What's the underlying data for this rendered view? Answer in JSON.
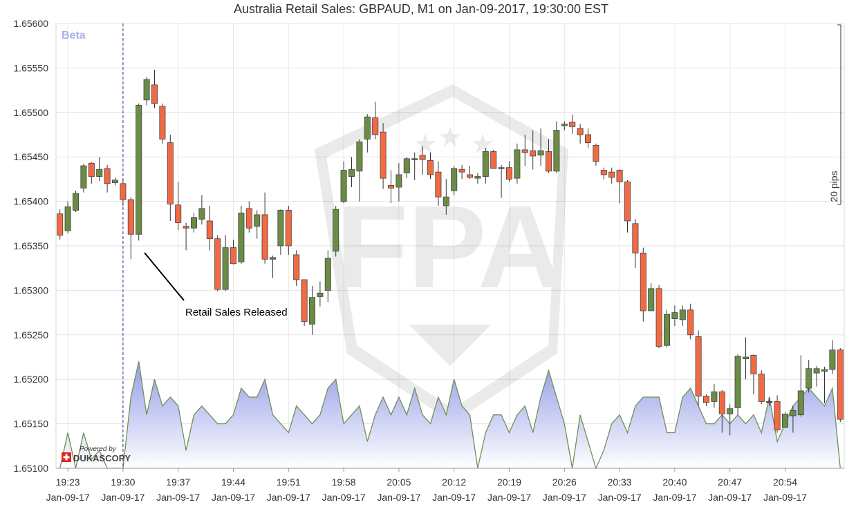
{
  "chart_data": {
    "type": "candlestick",
    "title": "Australia Retail Sales: GBPAUD, M1 on Jan-09-2017, 19:30:00 EST",
    "beta_label": "Beta",
    "powered_by": "Powered by",
    "brand": "DUKASCOPY",
    "watermark": "FPA",
    "pips_label": "20 pips",
    "annotation": "Retail Sales Released",
    "ylim": [
      1.651,
      1.656
    ],
    "y_ticks": [
      "1.65600",
      "1.65550",
      "1.65500",
      "1.65450",
      "1.65400",
      "1.65350",
      "1.65300",
      "1.65250",
      "1.65200",
      "1.65150",
      "1.65100"
    ],
    "x_ticks": [
      {
        "time": "19:23",
        "date": "Jan-09-17"
      },
      {
        "time": "19:30",
        "date": "Jan-09-17"
      },
      {
        "time": "19:37",
        "date": "Jan-09-17"
      },
      {
        "time": "19:44",
        "date": "Jan-09-17"
      },
      {
        "time": "19:51",
        "date": "Jan-09-17"
      },
      {
        "time": "19:58",
        "date": "Jan-09-17"
      },
      {
        "time": "20:05",
        "date": "Jan-09-17"
      },
      {
        "time": "20:12",
        "date": "Jan-09-17"
      },
      {
        "time": "20:19",
        "date": "Jan-09-17"
      },
      {
        "time": "20:26",
        "date": "Jan-09-17"
      },
      {
        "time": "20:33",
        "date": "Jan-09-17"
      },
      {
        "time": "20:40",
        "date": "Jan-09-17"
      },
      {
        "time": "20:47",
        "date": "Jan-09-17"
      },
      {
        "time": "20:54",
        "date": "Jan-09-17"
      }
    ],
    "first_minute": "19:22",
    "event_minute": "19:30",
    "colors": {
      "up": "#6b8c45",
      "down": "#f26a43",
      "doji": "#7a2f8a",
      "volume_line": "#6f8f52",
      "volume_fill_top": "#8f98e6",
      "event_line": "#2b2b8f",
      "beta": "#aab2ee"
    },
    "candles": [
      [
        1.65386,
        1.65391,
        1.65357,
        1.65362
      ],
      [
        1.65367,
        1.654,
        1.65364,
        1.65394
      ],
      [
        1.6539,
        1.65412,
        1.65388,
        1.65409
      ],
      [
        1.65415,
        1.65442,
        1.6541,
        1.6544
      ],
      [
        1.65443,
        1.65444,
        1.6542,
        1.65428
      ],
      [
        1.65428,
        1.6545,
        1.65423,
        1.65436
      ],
      [
        1.65437,
        1.65441,
        1.6541,
        1.6542
      ],
      [
        1.65421,
        1.65427,
        1.65418,
        1.65424
      ],
      [
        1.6542,
        1.65425,
        1.65395,
        1.65402
      ],
      [
        1.65402,
        1.65405,
        1.65335,
        1.65363
      ],
      [
        1.65363,
        1.6551,
        1.65356,
        1.65508
      ],
      [
        1.65514,
        1.6554,
        1.65508,
        1.65537
      ],
      [
        1.65531,
        1.65548,
        1.65505,
        1.6551
      ],
      [
        1.65507,
        1.6551,
        1.65465,
        1.6547
      ],
      [
        1.65466,
        1.65475,
        1.65378,
        1.65397
      ],
      [
        1.65396,
        1.65422,
        1.65368,
        1.65376
      ],
      [
        1.65372,
        1.65376,
        1.65345,
        1.6537
      ],
      [
        1.6537,
        1.65387,
        1.65365,
        1.65382
      ],
      [
        1.6538,
        1.65407,
        1.65374,
        1.65392
      ],
      [
        1.65378,
        1.65395,
        1.65345,
        1.65358
      ],
      [
        1.65358,
        1.65362,
        1.65299,
        1.65301
      ],
      [
        1.65301,
        1.65362,
        1.65299,
        1.65348
      ],
      [
        1.65348,
        1.65357,
        1.65329,
        1.6533
      ],
      [
        1.65332,
        1.65395,
        1.6533,
        1.65387
      ],
      [
        1.65392,
        1.654,
        1.65365,
        1.6537
      ],
      [
        1.65372,
        1.6539,
        1.65358,
        1.65385
      ],
      [
        1.65385,
        1.6541,
        1.6533,
        1.65335
      ],
      [
        1.65335,
        1.65339,
        1.65314,
        1.65337
      ],
      [
        1.6535,
        1.65391,
        1.6534,
        1.6539
      ],
      [
        1.6539,
        1.65395,
        1.6534,
        1.6535
      ],
      [
        1.6534,
        1.65345,
        1.65305,
        1.65312
      ],
      [
        1.65312,
        1.6531,
        1.6526,
        1.65265
      ],
      [
        1.65262,
        1.65305,
        1.6525,
        1.65292
      ],
      [
        1.65293,
        1.6531,
        1.65282,
        1.65297
      ],
      [
        1.653,
        1.65345,
        1.65287,
        1.65336
      ],
      [
        1.65344,
        1.65395,
        1.65338,
        1.65391
      ],
      [
        1.654,
        1.65445,
        1.65398,
        1.65435
      ],
      [
        1.65428,
        1.6545,
        1.65416,
        1.65436
      ],
      [
        1.65434,
        1.6547,
        1.654,
        1.65467
      ],
      [
        1.6547,
        1.65498,
        1.65455,
        1.65495
      ],
      [
        1.65494,
        1.65512,
        1.6547,
        1.65475
      ],
      [
        1.65478,
        1.65488,
        1.65414,
        1.65426
      ],
      [
        1.65418,
        1.65435,
        1.65398,
        1.65415
      ],
      [
        1.65416,
        1.65443,
        1.654,
        1.6543
      ],
      [
        1.65432,
        1.6545,
        1.65426,
        1.65448
      ],
      [
        1.65448,
        1.65455,
        1.65424,
        1.65448
      ],
      [
        1.65452,
        1.65462,
        1.6543,
        1.65447
      ],
      [
        1.65446,
        1.65455,
        1.65425,
        1.6543
      ],
      [
        1.65433,
        1.65445,
        1.65395,
        1.65405
      ],
      [
        1.65395,
        1.65425,
        1.65385,
        1.65405
      ],
      [
        1.65412,
        1.6544,
        1.65407,
        1.65437
      ],
      [
        1.65436,
        1.65441,
        1.65425,
        1.65433
      ],
      [
        1.6543,
        1.6544,
        1.65425,
        1.65427
      ],
      [
        1.65426,
        1.65432,
        1.6542,
        1.65428
      ],
      [
        1.65428,
        1.6546,
        1.6542,
        1.65456
      ],
      [
        1.65456,
        1.65458,
        1.65437,
        1.65437
      ],
      [
        1.65437,
        1.65441,
        1.65404,
        1.65438
      ],
      [
        1.65438,
        1.65445,
        1.65422,
        1.65425
      ],
      [
        1.65426,
        1.65465,
        1.6542,
        1.65458
      ],
      [
        1.65458,
        1.65475,
        1.6544,
        1.65455
      ],
      [
        1.65457,
        1.6548,
        1.65436,
        1.65451
      ],
      [
        1.65452,
        1.65482,
        1.6544,
        1.65457
      ],
      [
        1.65456,
        1.6547,
        1.65432,
        1.65434
      ],
      [
        1.65434,
        1.6549,
        1.65432,
        1.6548
      ],
      [
        1.65485,
        1.6549,
        1.6548,
        1.65487
      ],
      [
        1.65489,
        1.65497,
        1.65476,
        1.65484
      ],
      [
        1.65482,
        1.65487,
        1.65465,
        1.65475
      ],
      [
        1.65475,
        1.65482,
        1.6546,
        1.65466
      ],
      [
        1.65463,
        1.65465,
        1.6544,
        1.65445
      ],
      [
        1.65435,
        1.65438,
        1.65425,
        1.6543
      ],
      [
        1.65433,
        1.65438,
        1.6542,
        1.65427
      ],
      [
        1.65435,
        1.65436,
        1.65398,
        1.65422
      ],
      [
        1.65422,
        1.65424,
        1.65365,
        1.65378
      ],
      [
        1.65375,
        1.6538,
        1.65325,
        1.65342
      ],
      [
        1.65342,
        1.65348,
        1.65265,
        1.65277
      ],
      [
        1.65277,
        1.65308,
        1.65277,
        1.65302
      ],
      [
        1.65302,
        1.65306,
        1.65235,
        1.65237
      ],
      [
        1.65238,
        1.65278,
        1.65236,
        1.65273
      ],
      [
        1.65268,
        1.65283,
        1.6526,
        1.65275
      ],
      [
        1.65267,
        1.65283,
        1.6526,
        1.65278
      ],
      [
        1.65278,
        1.65285,
        1.65245,
        1.6525
      ],
      [
        1.65248,
        1.65255,
        1.6517,
        1.65181
      ],
      [
        1.65181,
        1.65183,
        1.6517,
        1.65174
      ],
      [
        1.65175,
        1.65195,
        1.65168,
        1.65186
      ],
      [
        1.65186,
        1.65188,
        1.6514,
        1.65161
      ],
      [
        1.65161,
        1.65172,
        1.65137,
        1.65167
      ],
      [
        1.65168,
        1.65228,
        1.6516,
        1.65226
      ],
      [
        1.65223,
        1.65247,
        1.652,
        1.65225
      ],
      [
        1.65227,
        1.65228,
        1.65183,
        1.65206
      ],
      [
        1.65206,
        1.6521,
        1.65172,
        1.65175
      ],
      [
        1.65175,
        1.6518,
        1.6517,
        1.65174
      ],
      [
        1.65175,
        1.65182,
        1.6514,
        1.65143
      ],
      [
        1.65146,
        1.65163,
        1.65145,
        1.65161
      ],
      [
        1.65159,
        1.6517,
        1.6514,
        1.65165
      ],
      [
        1.6516,
        1.65227,
        1.65158,
        1.65187
      ],
      [
        1.6519,
        1.65222,
        1.65185,
        1.65212
      ],
      [
        1.65207,
        1.65215,
        1.65192,
        1.65212
      ],
      [
        1.65209,
        1.65214,
        1.65173,
        1.65211
      ],
      [
        1.65211,
        1.65244,
        1.65206,
        1.65233
      ],
      [
        1.65233,
        1.65235,
        1.65152,
        1.65155
      ]
    ],
    "volume": [
      1.651,
      1.6514,
      1.651,
      1.6514,
      1.6511,
      1.6512,
      1.651,
      1.651,
      1.651,
      1.6518,
      1.6522,
      1.6516,
      1.652,
      1.6517,
      1.6518,
      1.6517,
      1.6512,
      1.6516,
      1.6517,
      1.6516,
      1.6515,
      1.6515,
      1.6516,
      1.6519,
      1.6518,
      1.6518,
      1.652,
      1.6516,
      1.6515,
      1.6514,
      1.6517,
      1.6516,
      1.6515,
      1.6516,
      1.6519,
      1.652,
      1.6515,
      1.6516,
      1.6517,
      1.6513,
      1.6516,
      1.6518,
      1.6516,
      1.6518,
      1.6516,
      1.6519,
      1.6516,
      1.6515,
      1.6518,
      1.6516,
      1.652,
      1.6517,
      1.6516,
      1.651,
      1.6514,
      1.6516,
      1.6516,
      1.6514,
      1.6516,
      1.6517,
      1.6514,
      1.6518,
      1.6521,
      1.6518,
      1.6515,
      1.651,
      1.6516,
      1.6513,
      1.651,
      1.6512,
      1.6515,
      1.6516,
      1.6514,
      1.6517,
      1.6518,
      1.6518,
      1.6518,
      1.6514,
      1.6514,
      1.6518,
      1.6519,
      1.6517,
      1.6515,
      1.6515,
      1.6516,
      1.6515,
      1.6516,
      1.6515,
      1.6516,
      1.6514,
      1.6518,
      1.6513,
      1.6515,
      1.6517,
      1.6518,
      1.6519,
      1.6518,
      1.6517,
      1.6519,
      1.651
    ]
  }
}
